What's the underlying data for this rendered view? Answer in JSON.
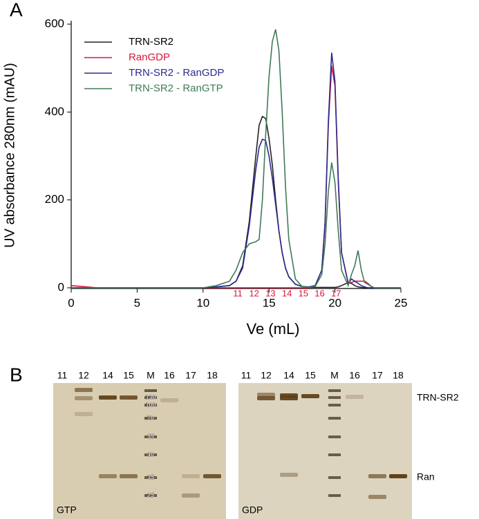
{
  "panel_labels": [
    "A",
    "B"
  ],
  "chart_data": {
    "type": "line",
    "xlabel": "Ve (mL)",
    "ylabel": "UV absorbance 280nm (mAU)",
    "x": [
      0,
      2,
      4,
      6,
      8,
      10,
      11,
      12,
      12.5,
      13,
      13.5,
      14,
      14.25,
      14.5,
      14.75,
      15,
      15.25,
      15.5,
      15.75,
      16,
      16.25,
      16.5,
      17,
      17.5,
      18,
      18.5,
      19,
      19.25,
      19.5,
      19.75,
      20,
      20.25,
      20.5,
      21,
      21.25,
      21.5,
      21.75,
      22,
      22.25,
      22.5,
      22.75,
      23,
      23.5,
      24,
      25
    ],
    "series": [
      {
        "name": "TRN-SR2",
        "color": "#222222",
        "values": [
          0,
          0,
          0,
          0,
          0,
          0,
          2,
          5,
          15,
          50,
          150,
          300,
          370,
          390,
          385,
          340,
          280,
          200,
          130,
          80,
          45,
          25,
          8,
          3,
          1,
          1,
          1,
          1,
          1,
          1,
          1,
          2,
          5,
          12,
          10,
          5,
          2,
          1,
          0,
          0,
          0,
          0,
          0,
          0,
          0
        ]
      },
      {
        "name": "RanGDP",
        "color": "#d6163a",
        "values": [
          5,
          0,
          0,
          0,
          0,
          0,
          0,
          0,
          0,
          0,
          0,
          0,
          0,
          0,
          0,
          0,
          0,
          0,
          0,
          0,
          0,
          0,
          0,
          0,
          0,
          5,
          40,
          145,
          370,
          505,
          460,
          240,
          80,
          12,
          12,
          15,
          15,
          15,
          15,
          10,
          3,
          0,
          0,
          0,
          0
        ]
      },
      {
        "name": "TRN-SR2 - RanGDP",
        "color": "#2b2a8f",
        "values": [
          0,
          0,
          0,
          0,
          0,
          0,
          2,
          5,
          15,
          45,
          140,
          270,
          320,
          338,
          335,
          300,
          250,
          190,
          130,
          80,
          45,
          25,
          8,
          3,
          2,
          5,
          40,
          150,
          380,
          535,
          470,
          250,
          80,
          10,
          20,
          15,
          10,
          5,
          2,
          0,
          0,
          0,
          0,
          0,
          0
        ]
      },
      {
        "name": "TRN-SR2 - RanGTP",
        "color": "#3f7a55",
        "values": [
          0,
          0,
          0,
          0,
          0,
          0,
          5,
          15,
          40,
          80,
          100,
          105,
          110,
          200,
          350,
          480,
          560,
          588,
          540,
          400,
          230,
          110,
          20,
          3,
          1,
          3,
          30,
          100,
          220,
          285,
          240,
          130,
          40,
          5,
          30,
          50,
          85,
          40,
          12,
          8,
          3,
          0,
          0,
          0,
          0
        ]
      }
    ],
    "fractions": [
      "11",
      "12",
      "13",
      "14",
      "15",
      "16",
      "17"
    ],
    "fraction_color": "#d6163a",
    "xlim": [
      0,
      25
    ],
    "xticks": [
      0,
      5,
      10,
      15,
      20,
      25
    ],
    "ylim": [
      0,
      600
    ],
    "yticks": [
      0,
      200,
      400,
      600
    ],
    "legend": "top-left"
  },
  "gels": [
    {
      "label": "GTP",
      "lanes": [
        "11",
        "12",
        "14",
        "15",
        "M",
        "16",
        "17",
        "18"
      ],
      "markers": [
        "130",
        "100",
        "70",
        "55",
        "40",
        "35",
        "25"
      ]
    },
    {
      "label": "GDP",
      "lanes": [
        "11",
        "12",
        "14",
        "15",
        "M",
        "16",
        "17",
        "18"
      ]
    }
  ],
  "band_labels": [
    "TRN-SR2",
    "Ran"
  ]
}
